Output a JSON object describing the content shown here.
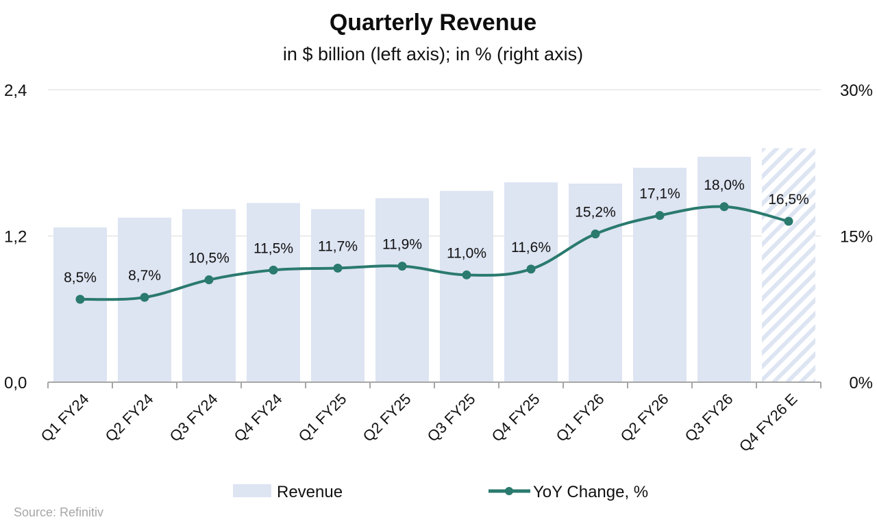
{
  "chart_data": {
    "type": "bar",
    "title": "Quarterly Revenue",
    "subtitle": "in $ billion (left axis); in % (right axis)",
    "categories": [
      "Q1 FY24",
      "Q2 FY24",
      "Q3 FY24",
      "Q4 FY24",
      "Q1 FY25",
      "Q2 FY25",
      "Q3 FY25",
      "Q4 FY25",
      "Q1 FY26",
      "Q2 FY26",
      "Q3 FY26",
      "Q4 FY26 E"
    ],
    "series": [
      {
        "name": "Revenue",
        "type": "bar",
        "axis": "left",
        "unit": "$ billion",
        "values": [
          1.27,
          1.35,
          1.42,
          1.47,
          1.42,
          1.51,
          1.57,
          1.64,
          1.63,
          1.76,
          1.85,
          1.92
        ],
        "estimate_flags": [
          false,
          false,
          false,
          false,
          false,
          false,
          false,
          false,
          false,
          false,
          false,
          true
        ],
        "color": "#DDE4F2"
      },
      {
        "name": "YoY Change, %",
        "type": "line",
        "axis": "right",
        "unit": "%",
        "values": [
          8.5,
          8.7,
          10.5,
          11.5,
          11.7,
          11.9,
          11.0,
          11.6,
          15.2,
          17.1,
          18.0,
          16.5
        ],
        "data_labels": [
          "8,5%",
          "8,7%",
          "10,5%",
          "11,5%",
          "11,7%",
          "11,9%",
          "11,0%",
          "11,6%",
          "15,2%",
          "17,1%",
          "18,0%",
          "16,5%"
        ],
        "color": "#2A7A6E",
        "smooth": true,
        "markers": true
      }
    ],
    "left_axis": {
      "ylim": [
        0,
        2.4
      ],
      "ticks": [
        0,
        1.2,
        2.4
      ],
      "tick_labels": [
        "0,0",
        "1,2",
        "2,4"
      ]
    },
    "right_axis": {
      "ylim": [
        0,
        30
      ],
      "ticks": [
        0,
        15,
        30
      ],
      "tick_labels": [
        "0%",
        "15%",
        "30%"
      ]
    },
    "xlabel": "",
    "ylabel": "",
    "grid": true,
    "legend": {
      "placement": "bottom",
      "entries": [
        "Revenue",
        "YoY Change, %"
      ]
    },
    "source": "Source: Refinitiv"
  },
  "colors": {
    "bar": "#DDE4F2",
    "line": "#2A7A6E",
    "grid": "#E6E6E6",
    "axis": "#A6A6A6",
    "source_text": "#A6A6A6"
  }
}
